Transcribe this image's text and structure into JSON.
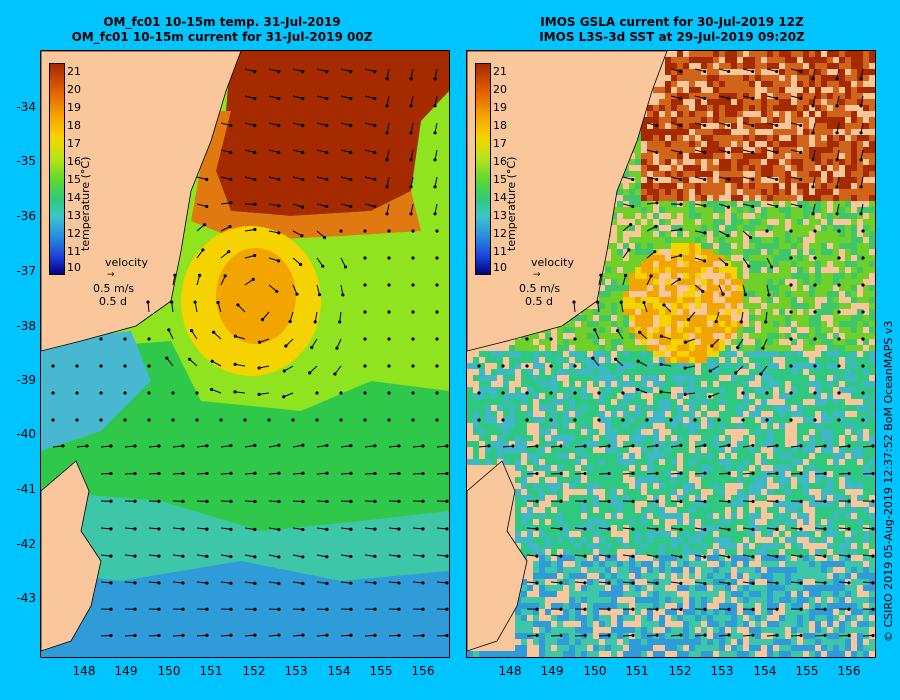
{
  "left_panel": {
    "title_line1": "OM_fc01 10-15m temp. 31-Jul-2019",
    "title_line2": "OM_fc01 10-15m current for 31-Jul-2019 00Z"
  },
  "right_panel": {
    "title_line1": "IMOS GSLA current for 30-Jul-2019 12Z",
    "title_line2": "IMOS L3S-3d SST at 29-Jul-2019 09:20Z"
  },
  "y_ticks": [
    "-34",
    "-35",
    "-36",
    "-37",
    "-38",
    "-39",
    "-40",
    "-41",
    "-42",
    "-43"
  ],
  "x_ticks": [
    "148",
    "149",
    "150",
    "151",
    "152",
    "153",
    "154",
    "155",
    "156"
  ],
  "colorbar": {
    "labels": [
      "21",
      "20",
      "19",
      "18",
      "17",
      "16",
      "15",
      "14",
      "13",
      "12",
      "11",
      "10"
    ],
    "title": "temperature (°C)"
  },
  "velocity_legend": {
    "label": "velocity",
    "speed": "0.5 m/s",
    "time": "0.5 d"
  },
  "credit": "© CSIRO 2019   05-Aug-2019 12:37:52 BoM OceanMAPS v3",
  "colors": {
    "background": "#00c4ff",
    "land": "#f9c79b",
    "warm": "#a52a00",
    "cool": "#1a7fd4"
  }
}
